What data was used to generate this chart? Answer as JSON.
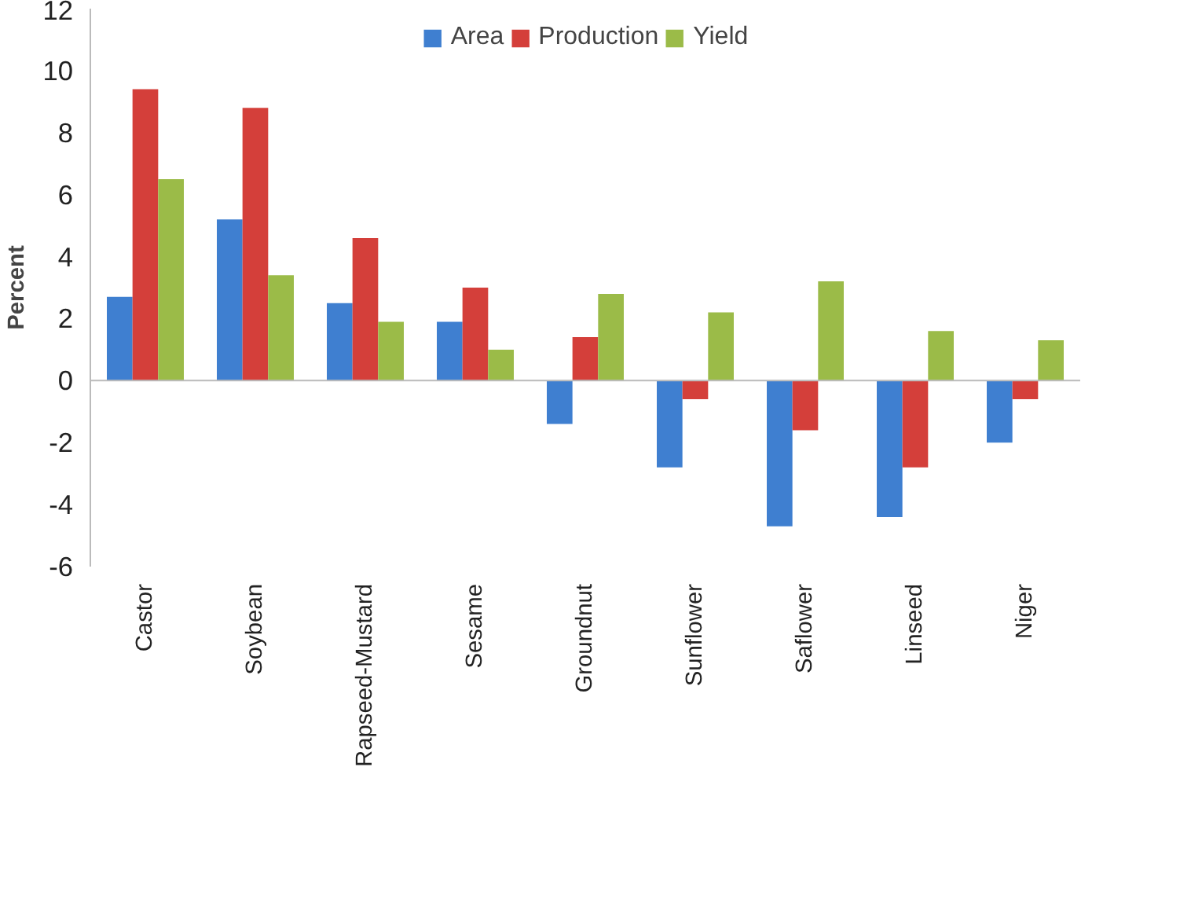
{
  "chart_data": {
    "type": "bar",
    "ylabel": "Percent",
    "categories": [
      "Castor",
      "Soybean",
      "Rapseed-Mustard",
      "Sesame",
      "Groundnut",
      "Sunflower",
      "Saflower",
      "Linseed",
      "Niger"
    ],
    "series": [
      {
        "name": "Area",
        "color": "#3f7fd0",
        "values": [
          2.7,
          5.2,
          2.5,
          1.9,
          -1.4,
          -2.8,
          -4.7,
          -4.4,
          -2.0
        ]
      },
      {
        "name": "Production",
        "color": "#d43f3a",
        "values": [
          9.4,
          8.8,
          4.6,
          3.0,
          1.4,
          -0.6,
          -1.6,
          -2.8,
          -0.6
        ]
      },
      {
        "name": "Yield",
        "color": "#9bbb48",
        "values": [
          6.5,
          3.4,
          1.9,
          1.0,
          2.8,
          2.2,
          3.2,
          1.6,
          1.3
        ]
      }
    ],
    "ylim": [
      -6,
      12
    ],
    "yticks": [
      -6,
      -4,
      -2,
      0,
      2,
      4,
      6,
      8,
      10,
      12
    ],
    "legend": "top"
  }
}
